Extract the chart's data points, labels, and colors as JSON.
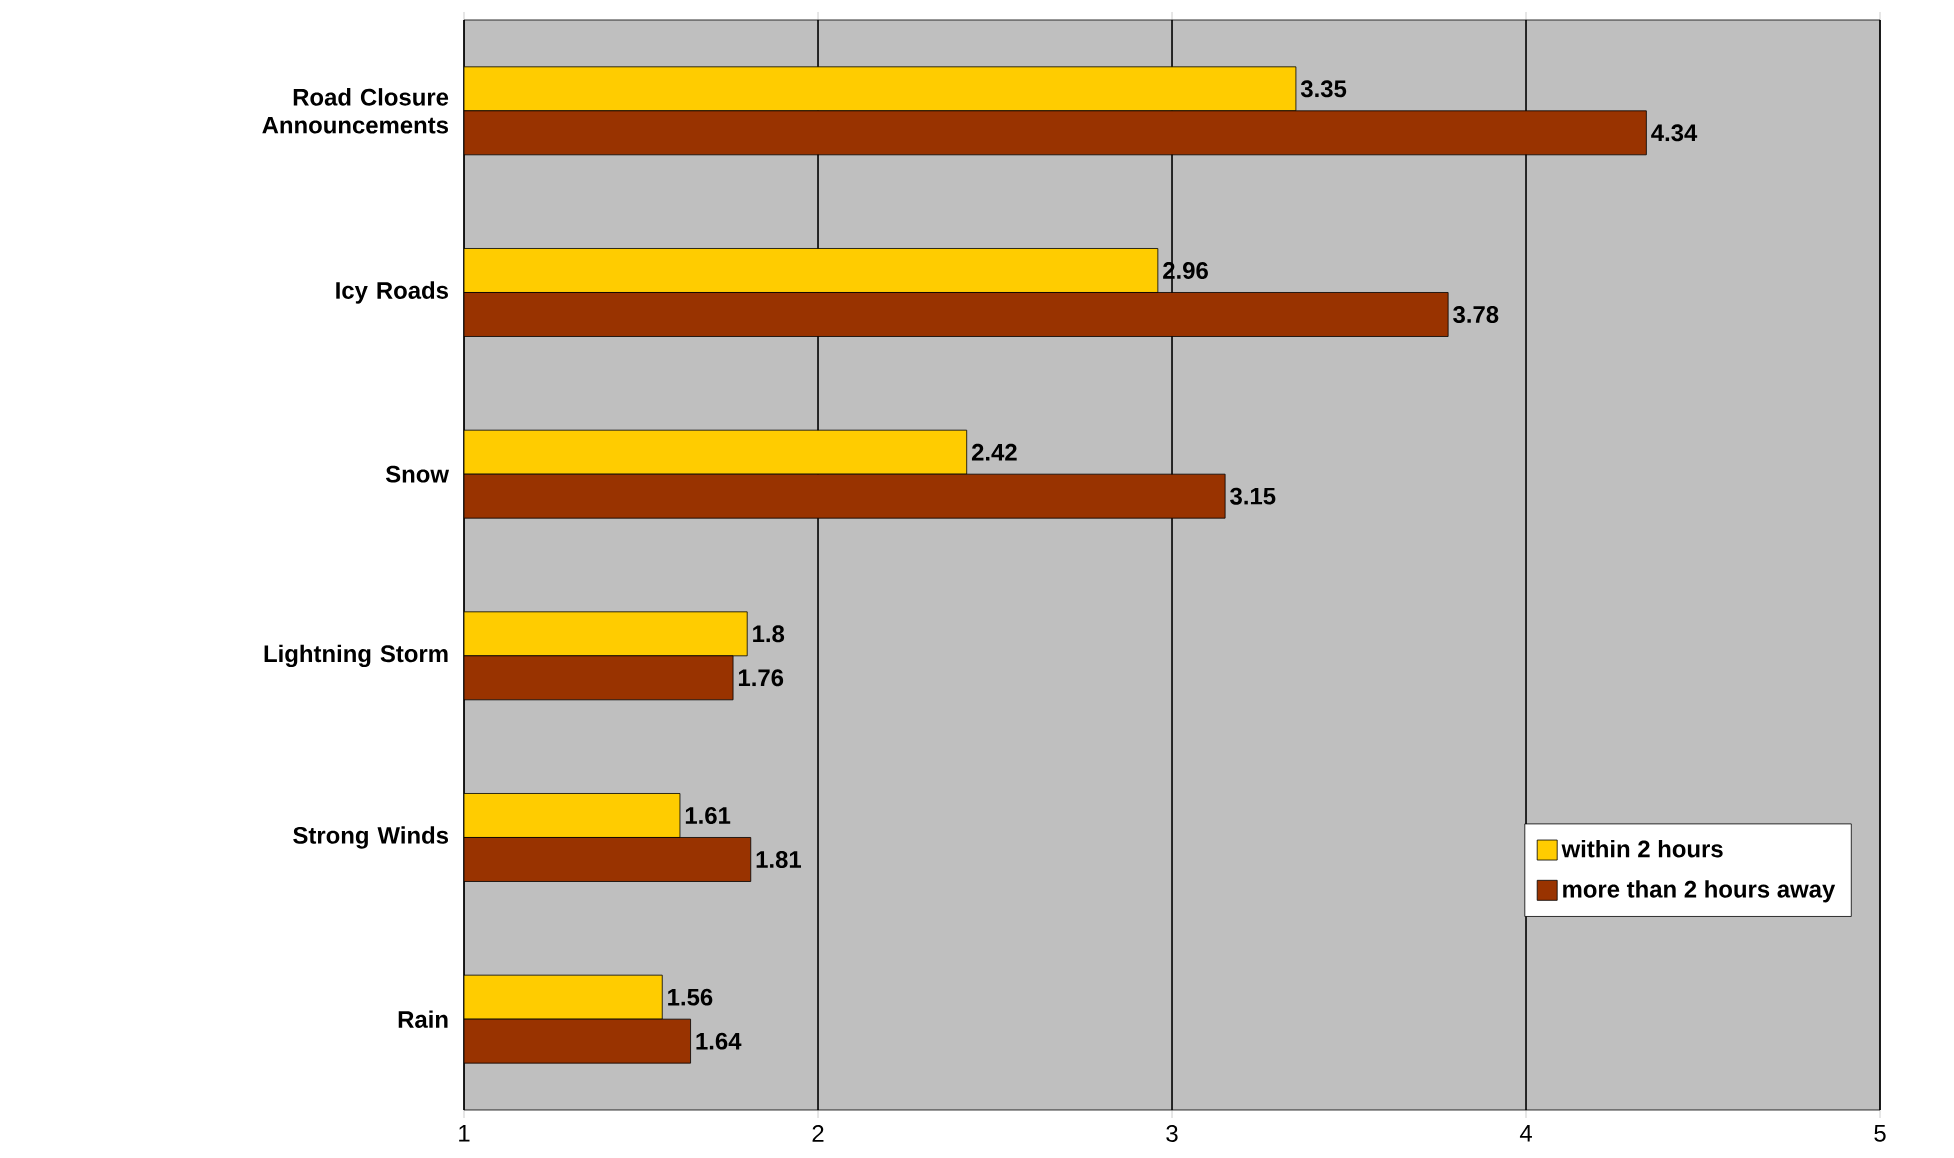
{
  "chart_data": {
    "type": "bar",
    "orientation": "horizontal",
    "categories": [
      "Road Closure Announcements",
      "Icy Roads",
      "Snow",
      "Lightning Storm",
      "Strong Winds",
      "Rain"
    ],
    "series": [
      {
        "name": "within 2 hours",
        "color": "#ffcc00",
        "values": [
          3.35,
          2.96,
          2.42,
          1.8,
          1.61,
          1.56
        ]
      },
      {
        "name": "more than 2 hours away",
        "color": "#993300",
        "values": [
          4.34,
          3.78,
          3.15,
          1.76,
          1.81,
          1.64
        ]
      }
    ],
    "xlim": [
      1,
      5
    ],
    "xticks": [
      1,
      2,
      3,
      4,
      5
    ],
    "grid": "x",
    "legend": "bottom right",
    "data_labels": true
  }
}
